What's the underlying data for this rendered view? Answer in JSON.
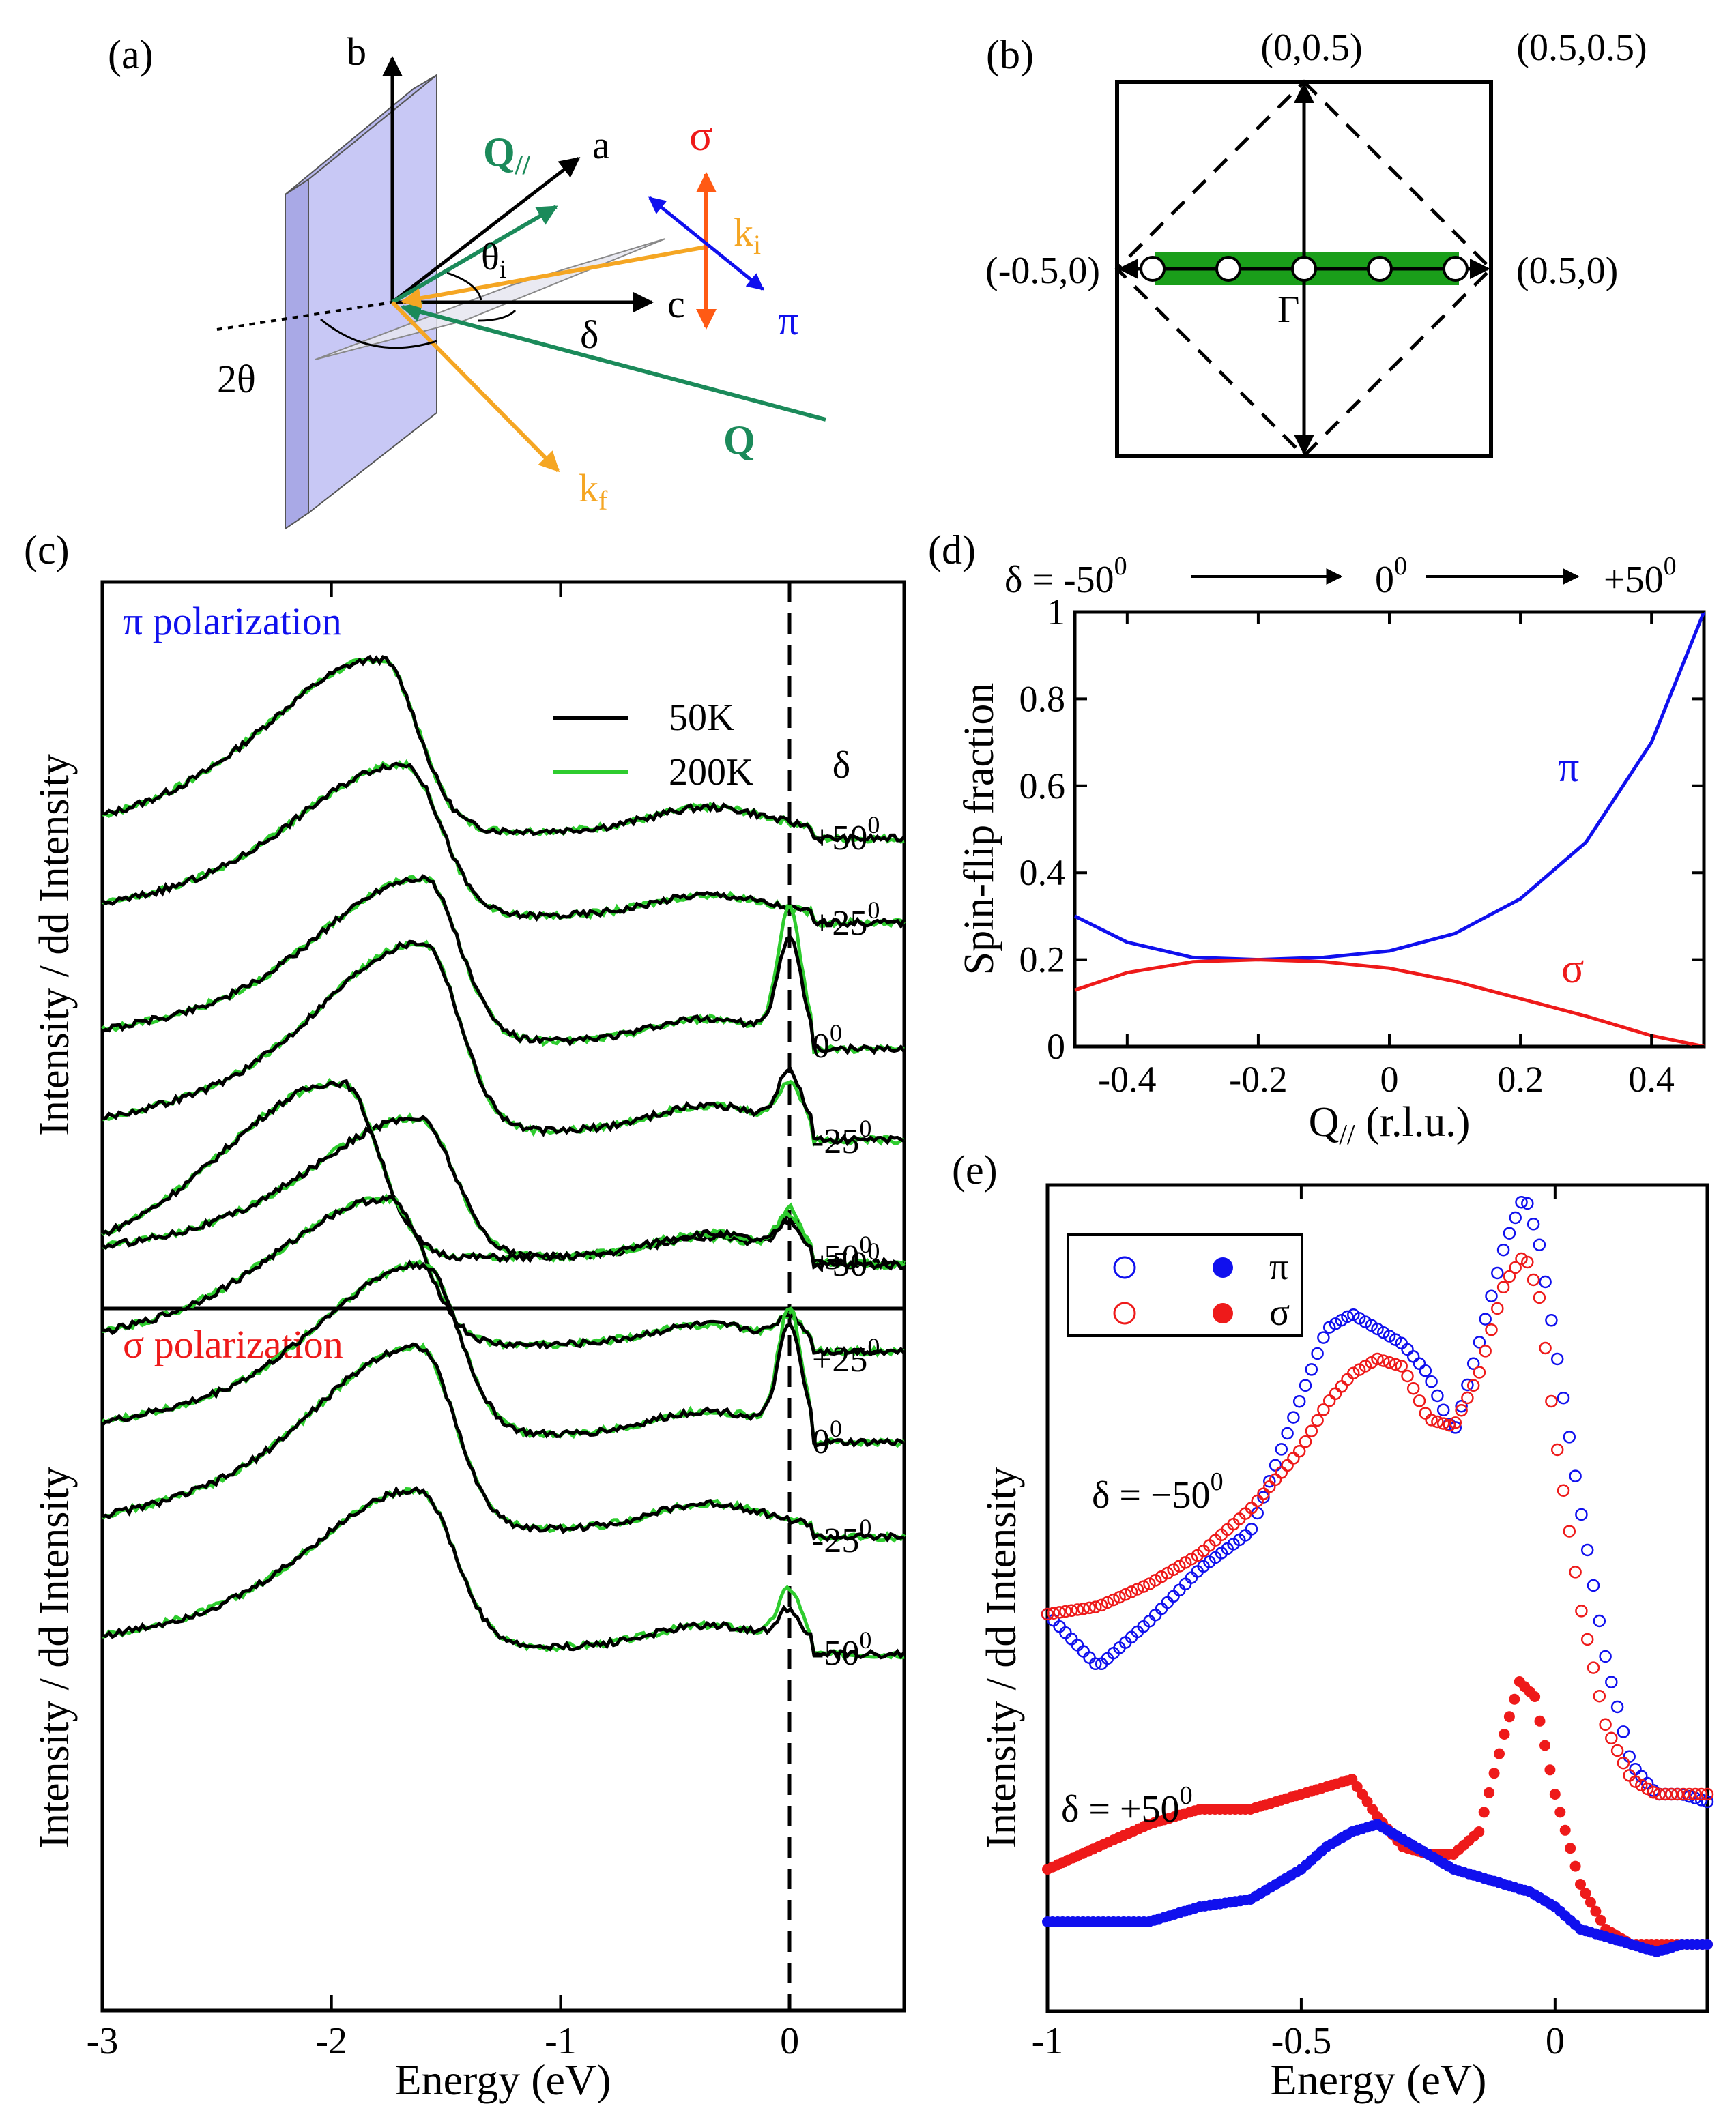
{
  "colors": {
    "black": "#000000",
    "green": "#2ecc2e",
    "blue": "#1010ee",
    "red": "#ee1a1a",
    "orange": "#f5a623",
    "sigma_arrow": "#ff5a14",
    "qgreen": "#1b8a5a",
    "plane": "#c8c8f5"
  },
  "panel_a": {
    "label": "(a)",
    "axis_b": "b",
    "axis_a": "a",
    "axis_c": "c",
    "q_par_main": "Q",
    "q_par_sub": "//",
    "theta_main": "θ",
    "theta_sub": "i",
    "two_theta": "2θ",
    "delta": "δ",
    "sigma": "σ",
    "pi": "π",
    "ki_main": "k",
    "ki_sub": "i",
    "kf_main": "k",
    "kf_sub": "f",
    "q": "Q"
  },
  "panel_b": {
    "label": "(b)",
    "top_label": "(0,0.5)",
    "corner_label": "(0.5,0.5)",
    "left_label": "(-0.5,0)",
    "right_label": "(0.5,0)",
    "gamma": "Γ",
    "points_q": [
      -0.5,
      -0.25,
      0,
      0.25,
      0.5
    ]
  },
  "chart_data": [
    {
      "panel": "(c)",
      "type": "line",
      "ylabel": "Intensity / dd Intensity",
      "xlabel": "Energy (eV)",
      "xlim": [
        -3,
        0.5
      ],
      "xticks": [
        "-3",
        "-2",
        "-1",
        "0"
      ],
      "legend": {
        "items": [
          "50K",
          "200K"
        ],
        "placement": "top-right"
      },
      "delta_header": "δ",
      "subpanels": [
        {
          "title": "π polarization",
          "offsets": [
            "+50",
            "+25",
            "0",
            "-25",
            "-50"
          ],
          "offset_sup": "0",
          "elastic_peak_50K": [
            0.0,
            0.0,
            0.55,
            0.25,
            0.22
          ],
          "elastic_peak_200K": [
            0.0,
            0.0,
            0.7,
            0.2,
            0.28
          ],
          "dd_peak_position_eV": [
            -1.78,
            -1.68,
            -1.6,
            -1.6,
            -1.62
          ]
        },
        {
          "title": "σ polarization",
          "offsets": [
            "+50",
            "+25",
            "0",
            "-25",
            "-50"
          ],
          "offset_sup": "0",
          "elastic_peak_50K": [
            0.15,
            0.15,
            0.55,
            0.0,
            0.18
          ],
          "elastic_peak_200K": [
            0.18,
            0.15,
            0.65,
            0.0,
            0.3
          ],
          "dd_peak_position_eV": [
            -1.95,
            -1.75,
            -1.6,
            -1.62,
            -1.62
          ]
        }
      ]
    },
    {
      "panel": "(d)",
      "type": "line",
      "ylabel": "Spin-flip fraction",
      "xlabel_main": "Q",
      "xlabel_sub": "//",
      "xlabel_tail": " (r.l.u.)",
      "xlim": [
        -0.48,
        0.48
      ],
      "ylim": [
        0,
        1
      ],
      "xticks": [
        "-0.4",
        "-0.2",
        "0",
        "0.2",
        "0.4"
      ],
      "yticks": [
        "0",
        "0.2",
        "0.4",
        "0.6",
        "0.8",
        "1"
      ],
      "top_scale": {
        "prefix": "δ = ",
        "start": "-50",
        "mid": "0",
        "end": "+50",
        "sup": "0"
      },
      "series": [
        {
          "name": "π",
          "x": [
            -0.48,
            -0.4,
            -0.3,
            -0.2,
            -0.1,
            0,
            0.1,
            0.2,
            0.3,
            0.4,
            0.48
          ],
          "y": [
            0.3,
            0.24,
            0.205,
            0.2,
            0.205,
            0.22,
            0.26,
            0.34,
            0.47,
            0.7,
            1.0
          ]
        },
        {
          "name": "σ",
          "x": [
            -0.48,
            -0.4,
            -0.3,
            -0.2,
            -0.1,
            0,
            0.1,
            0.2,
            0.3,
            0.4,
            0.48
          ],
          "y": [
            0.13,
            0.17,
            0.195,
            0.2,
            0.195,
            0.18,
            0.15,
            0.11,
            0.07,
            0.025,
            0.0
          ]
        }
      ]
    },
    {
      "panel": "(e)",
      "type": "scatter",
      "ylabel": "Intensity / dd Intensity",
      "xlabel": "Energy (eV)",
      "xlim": [
        -1,
        0.3
      ],
      "xticks": [
        "-1",
        "-0.5",
        "0"
      ],
      "legend": {
        "items": [
          "π",
          "σ"
        ],
        "placement": "top-left"
      },
      "annotations": [
        {
          "prefix": "δ = −50",
          "sup": "0"
        },
        {
          "prefix": "δ = +50",
          "sup": "0"
        }
      ],
      "series": [
        {
          "name": "π δ=−50 (open)",
          "x": [
            -1,
            -0.9,
            -0.8,
            -0.7,
            -0.6,
            -0.5,
            -0.45,
            -0.4,
            -0.35,
            -0.3,
            -0.25,
            -0.2,
            -0.15,
            -0.1,
            -0.06,
            -0.03,
            0,
            0.05,
            0.1,
            0.15,
            0.2,
            0.25,
            0.3
          ],
          "y": [
            0.44,
            0.37,
            0.43,
            0.5,
            0.55,
            0.73,
            0.82,
            0.84,
            0.82,
            0.8,
            0.76,
            0.68,
            0.8,
            0.93,
            1.0,
            0.93,
            0.8,
            0.58,
            0.38,
            0.24,
            0.2,
            0.2,
            0.19
          ]
        },
        {
          "name": "σ δ=−50 (open)",
          "x": [
            -1,
            -0.9,
            -0.8,
            -0.7,
            -0.6,
            -0.5,
            -0.45,
            -0.4,
            -0.35,
            -0.3,
            -0.25,
            -0.2,
            -0.15,
            -0.1,
            -0.06,
            -0.03,
            0,
            0.05,
            0.1,
            0.15,
            0.2,
            0.25,
            0.3
          ],
          "y": [
            0.44,
            0.45,
            0.48,
            0.52,
            0.58,
            0.66,
            0.72,
            0.76,
            0.78,
            0.77,
            0.7,
            0.69,
            0.76,
            0.88,
            0.92,
            0.86,
            0.68,
            0.45,
            0.29,
            0.22,
            0.2,
            0.2,
            0.2
          ]
        },
        {
          "name": "σ δ=+50 (filled)",
          "x": [
            -1,
            -0.9,
            -0.8,
            -0.7,
            -0.6,
            -0.5,
            -0.45,
            -0.4,
            -0.35,
            -0.3,
            -0.25,
            -0.2,
            -0.15,
            -0.1,
            -0.07,
            -0.04,
            0,
            0.05,
            0.1,
            0.15,
            0.2,
            0.25,
            0.3
          ],
          "y": [
            0.1,
            0.13,
            0.16,
            0.18,
            0.18,
            0.2,
            0.21,
            0.22,
            0.17,
            0.13,
            0.12,
            0.12,
            0.15,
            0.28,
            0.35,
            0.33,
            0.2,
            0.08,
            0.02,
            0.0,
            0.0,
            0.0,
            0.0
          ]
        },
        {
          "name": "π δ=+50 (filled)",
          "x": [
            -1,
            -0.9,
            -0.8,
            -0.7,
            -0.6,
            -0.5,
            -0.45,
            -0.4,
            -0.35,
            -0.3,
            -0.25,
            -0.2,
            -0.15,
            -0.1,
            -0.05,
            0,
            0.05,
            0.1,
            0.15,
            0.2,
            0.25,
            0.3
          ],
          "y": [
            0.03,
            0.03,
            0.03,
            0.05,
            0.06,
            0.1,
            0.13,
            0.15,
            0.16,
            0.14,
            0.12,
            0.1,
            0.09,
            0.08,
            0.07,
            0.05,
            0.02,
            0.01,
            0.0,
            -0.01,
            0.0,
            0.0
          ]
        }
      ]
    }
  ]
}
